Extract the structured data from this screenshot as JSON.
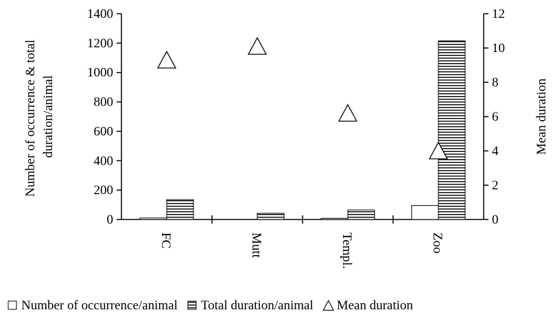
{
  "chart_data": {
    "type": "bar",
    "categories": [
      "FC",
      "Mutt",
      "Templ.",
      "Zoo"
    ],
    "series": [
      {
        "name": "Number of occurrence/animal",
        "axis": "left",
        "style": "white",
        "values": [
          10,
          0,
          8,
          95
        ]
      },
      {
        "name": "Total duration/animal",
        "axis": "left",
        "style": "horizontal-stripes",
        "values": [
          135,
          42,
          65,
          1215
        ]
      },
      {
        "name": "Mean duration",
        "axis": "right",
        "style": "triangle-marker",
        "values": [
          9.2,
          10.0,
          6.1,
          3.9
        ]
      }
    ],
    "ylabel": "Number of occurrence & total duration/animal",
    "y2label": "Mean duration",
    "ylim": [
      0,
      1400
    ],
    "yticks": [
      "0",
      "200",
      "400",
      "600",
      "800",
      "1000",
      "1200",
      "1400"
    ],
    "y2lim": [
      0,
      12
    ],
    "y2ticks": [
      "0",
      "2",
      "4",
      "6",
      "8",
      "10",
      "12"
    ],
    "grid": false,
    "legend_position": "bottom"
  }
}
